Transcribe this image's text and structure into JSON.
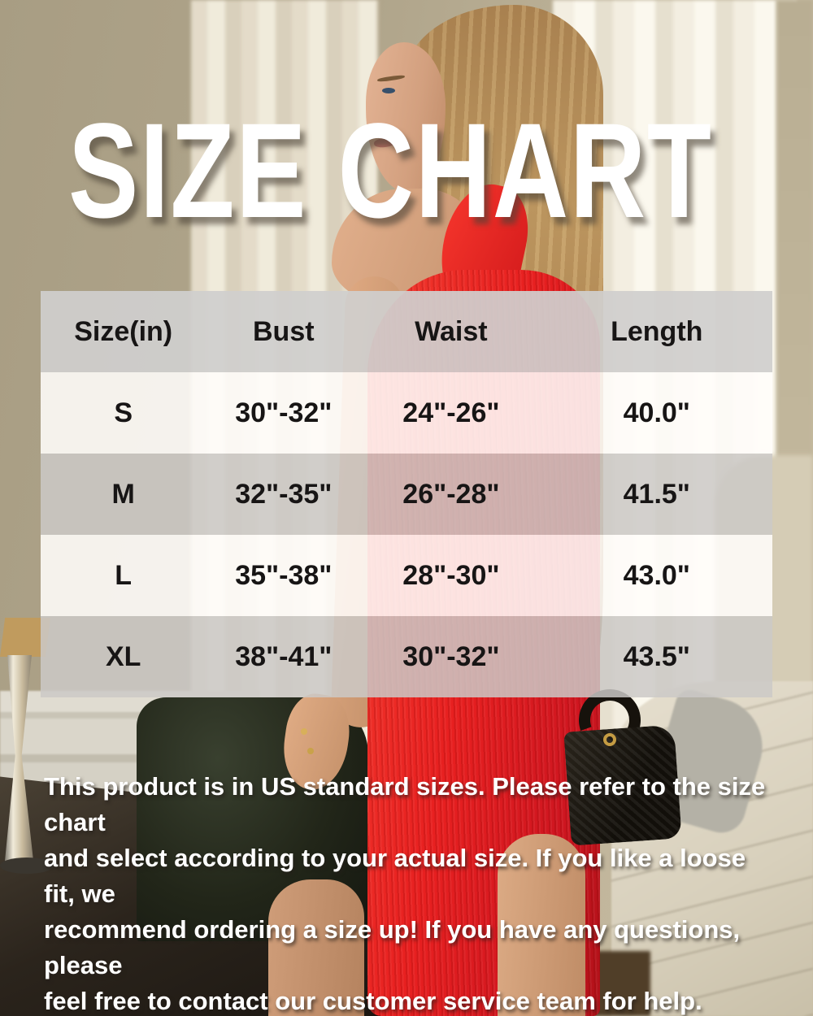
{
  "header": {
    "title": "SIZE CHART"
  },
  "chart_data": {
    "type": "table",
    "title": "SIZE CHART",
    "columns": [
      "Size(in)",
      "Bust",
      "Waist",
      "Length"
    ],
    "rows": [
      [
        "S",
        "30\"-32\"",
        "24\"-26\"",
        "40.0\""
      ],
      [
        "M",
        "32\"-35\"",
        "26\"-28\"",
        "41.5\""
      ],
      [
        "L",
        "35\"-38\"",
        "28\"-30\"",
        "43.0\""
      ],
      [
        "XL",
        "38\"-41\"",
        "30\"-32\"",
        "43.5\""
      ]
    ]
  },
  "notice": {
    "lines": [
      "This product is in US standard sizes. Please refer to the size chart",
      "and select according to your actual size. If you like a loose fit, we",
      "recommend ordering a size up! If you have any questions, please",
      "feel free to contact our customer service team for help."
    ]
  },
  "colors": {
    "dress_red": "#e82020",
    "wall_beige": "#b0a58b",
    "table_header_bg": "#d0cfcd",
    "table_gray_row": "#cbc9c7",
    "table_white_row": "#fffdfa",
    "table_text": "#171515",
    "overlay_text": "#ffffff"
  }
}
